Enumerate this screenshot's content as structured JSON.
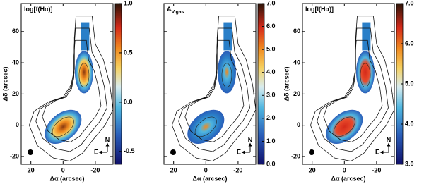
{
  "figure": {
    "panels": [
      {
        "title": "log[f(Hα)]",
        "xlabel": "Δα (arcsec)",
        "ylabel": "Δδ (arcsec)",
        "ytick_labels": true,
        "xlim": [
          26,
          -31
        ],
        "ylim": [
          -25,
          78
        ],
        "xticks": [
          20,
          0,
          -20
        ],
        "yticks": [
          -20,
          0,
          20,
          40,
          60
        ],
        "colorbar": {
          "lim": [
            -0.63,
            1.0
          ],
          "ticks": [
            {
              "value": 1.0,
              "label": "1.0"
            },
            0.5,
            {
              "value": 0.0,
              "label": "0.0"
            },
            -0.5
          ]
        },
        "compass": {
          "east": "E",
          "north": "N"
        },
        "style": "flux"
      },
      {
        "title": "A",
        "title_sub": "V,gas",
        "xlabel": "Δα (arcsec)",
        "ytick_labels": false,
        "xlim": [
          26,
          -31
        ],
        "ylim": [
          -25,
          78
        ],
        "xticks": [
          20,
          0,
          -20
        ],
        "yticks": [
          -20,
          0,
          20,
          40,
          60
        ],
        "colorbar": {
          "lim": [
            0.0,
            7.0
          ],
          "ticks": [
            {
              "value": 7.0,
              "label": "7.0"
            },
            {
              "value": 6.0,
              "label": "6.0"
            },
            {
              "value": 5.0,
              "label": "5.0"
            },
            {
              "value": 4.0,
              "label": "4.0"
            },
            {
              "value": 3.0,
              "label": "3.0"
            },
            {
              "value": 2.0,
              "label": "2.0"
            },
            {
              "value": 1.0,
              "label": "1.0"
            },
            {
              "value": 0.0,
              "label": "0.0"
            }
          ]
        },
        "compass": {
          "east": "E",
          "north": "N"
        },
        "style": "extinction"
      },
      {
        "title": "log[l(Hα)]",
        "xlabel": "Δα (arcsec)",
        "ylabel": "Δδ (arcsec)",
        "ytick_labels": true,
        "xlim": [
          26,
          -31
        ],
        "ylim": [
          -25,
          78
        ],
        "xticks": [
          20,
          0,
          -20
        ],
        "yticks": [
          -20,
          0,
          20,
          40,
          60
        ],
        "colorbar": {
          "lim": [
            3.0,
            7.0
          ],
          "ticks": [
            {
              "value": 7.0,
              "label": "7.0"
            },
            {
              "value": 6.0,
              "label": "6.0"
            },
            {
              "value": 5.0,
              "label": "5.0"
            },
            {
              "value": 4.0,
              "label": "4.0"
            },
            {
              "value": 3.0,
              "label": "3.0"
            }
          ]
        },
        "compass": {
          "east": "E",
          "north": "N"
        },
        "style": "luminosity"
      }
    ]
  }
}
